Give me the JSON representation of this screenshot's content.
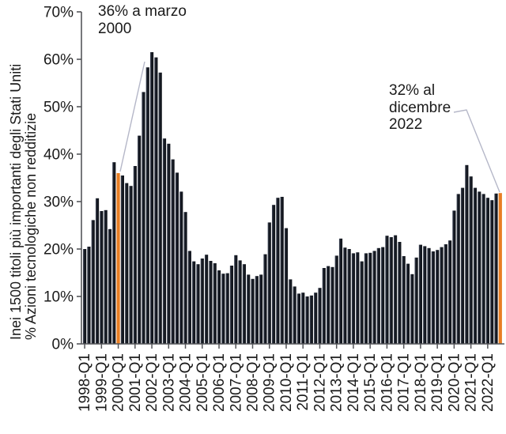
{
  "figure": {
    "annotations": {
      "peak2000": "36% a marzo\n2000",
      "dec2022": "32% al\ndicembre\n2022"
    }
  },
  "chart_data": {
    "type": "bar",
    "title": "",
    "ylabel_line1": "% Azioni tecnologiche non redditizie",
    "ylabel_line2": "Inei 1500 titoli più importanti degli Stati Uniti",
    "ylim": [
      0,
      70
    ],
    "y_tick_labels": [
      "0%",
      "10%",
      "20%",
      "30%",
      "40%",
      "50%",
      "60%",
      "70%"
    ],
    "x_tick_labels": [
      "1998-Q1",
      "1999-Q1",
      "2000-Q1",
      "2001-Q1",
      "2002-Q1",
      "2003-Q1",
      "2004-Q1",
      "2005-Q1",
      "2006-Q1",
      "2007-Q1",
      "2008-Q1",
      "2009-Q1",
      "2010-Q1",
      "2011-Q1",
      "2012-Q1",
      "2013-Q1",
      "2014-Q1",
      "2015-Q1",
      "2016-Q1",
      "2017-Q1",
      "2018-Q1",
      "2019-Q1",
      "2020-Q1",
      "2021-Q1",
      "2022-Q1"
    ],
    "quarters_start": "1998-Q1",
    "quarters_end": "2022-Q4",
    "values": [
      20.0,
      20.5,
      26.1,
      30.7,
      28.0,
      28.2,
      24.2,
      38.3,
      36.0,
      35.5,
      33.9,
      33.3,
      37.5,
      43.9,
      53.1,
      58.3,
      61.5,
      60.4,
      57.2,
      43.3,
      42.2,
      38.9,
      36.1,
      32.1,
      27.8,
      19.6,
      17.4,
      16.8,
      18.0,
      18.8,
      17.5,
      17.0,
      15.5,
      14.8,
      14.9,
      16.5,
      18.7,
      17.6,
      16.8,
      14.6,
      13.7,
      14.3,
      14.6,
      18.9,
      25.6,
      29.3,
      30.8,
      31.0,
      24.4,
      13.6,
      12.1,
      10.6,
      10.8,
      10.0,
      10.2,
      10.8,
      11.8,
      16.0,
      16.4,
      16.2,
      18.6,
      22.2,
      20.3,
      20.0,
      19.1,
      19.3,
      17.4,
      19.1,
      19.2,
      19.6,
      20.2,
      20.4,
      22.8,
      22.5,
      22.9,
      21.5,
      18.5,
      16.9,
      14.7,
      18.2,
      20.9,
      20.6,
      20.2,
      19.5,
      19.8,
      20.4,
      21.0,
      21.8,
      28.1,
      31.6,
      32.9,
      37.7,
      35.3,
      32.9,
      32.1,
      31.6,
      30.8,
      30.3,
      31.7,
      31.8
    ],
    "highlight": {
      "indices": [
        8,
        99
      ],
      "labels": [
        "2000-Q1",
        "2022-Q4"
      ],
      "color": "#e87e23"
    },
    "bar_color": "#161a23",
    "bar_edge_color": "#4a5263",
    "axis_color": "#55565a",
    "text_color": "#1a1a1a",
    "leader_line_color": "#b5b7c8",
    "grid": false,
    "legend": null
  }
}
